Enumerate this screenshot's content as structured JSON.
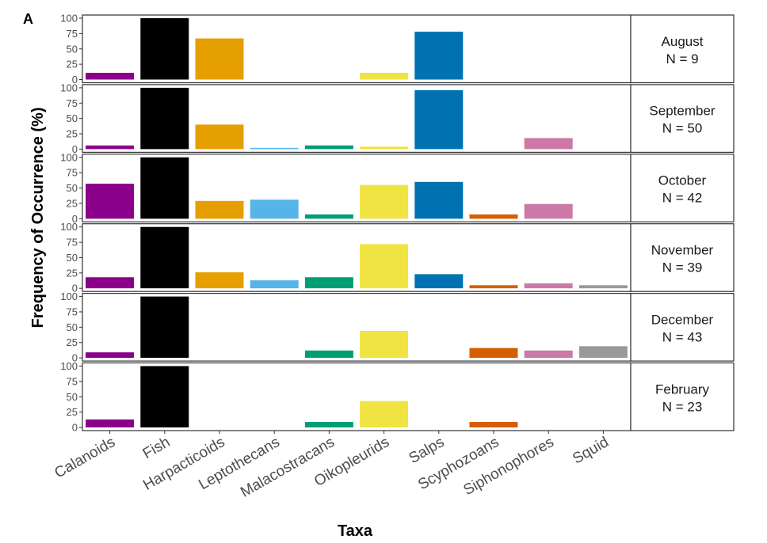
{
  "panel_label": "A",
  "chart_data": {
    "type": "bar",
    "faceted": true,
    "xlabel": "Taxa",
    "ylabel": "Frequency of Occurrence (%)",
    "ylim": [
      0,
      100
    ],
    "yticks": [
      0,
      25,
      50,
      75,
      100
    ],
    "categories": [
      "Calanoids",
      "Fish",
      "Harpacticoids",
      "Leptothecans",
      "Malacostracans",
      "Oikopleurids",
      "Salps",
      "Scyphozoans",
      "Siphonophores",
      "Squid"
    ],
    "colors": [
      "#8B008B",
      "#000000",
      "#E69F00",
      "#56B4E9",
      "#009E73",
      "#F0E442",
      "#0072B2",
      "#D55E00",
      "#CC79A7",
      "#999999"
    ],
    "facets": [
      {
        "month": "August",
        "n_label": "N = 9",
        "values": [
          11,
          100,
          67,
          0,
          0,
          11,
          78,
          0,
          0,
          0
        ]
      },
      {
        "month": "September",
        "n_label": "N = 50",
        "values": [
          6,
          100,
          40,
          2,
          6,
          4,
          96,
          0,
          18,
          0
        ]
      },
      {
        "month": "October",
        "n_label": "N = 42",
        "values": [
          57,
          100,
          29,
          31,
          7,
          55,
          60,
          7,
          24,
          0
        ]
      },
      {
        "month": "November",
        "n_label": "N = 39",
        "values": [
          18,
          100,
          26,
          13,
          18,
          72,
          23,
          5,
          8,
          5
        ]
      },
      {
        "month": "December",
        "n_label": "N = 43",
        "values": [
          9,
          100,
          0,
          0,
          12,
          44,
          0,
          16,
          12,
          19
        ]
      },
      {
        "month": "February",
        "n_label": "N = 23",
        "values": [
          13,
          100,
          0,
          0,
          9,
          43,
          0,
          9,
          0,
          0
        ]
      }
    ]
  }
}
